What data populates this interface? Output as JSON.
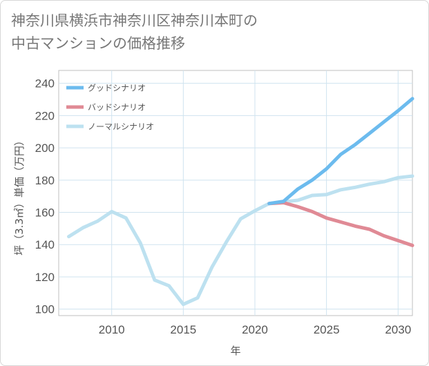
{
  "title_line1": "神奈川県横浜市神奈川区神奈川本町の",
  "title_line2": "中古マンションの価格推移",
  "chart_data": {
    "type": "line",
    "xlabel": "年",
    "ylabel": "坪（3.3㎡）単価（万円）",
    "xlim": [
      2006.3,
      2031
    ],
    "ylim": [
      96,
      248
    ],
    "xticks": [
      2010,
      2015,
      2020,
      2025,
      2030
    ],
    "yticks": [
      100,
      120,
      140,
      160,
      180,
      200,
      220,
      240
    ],
    "grid": true,
    "legend_position": "top-left",
    "series": [
      {
        "name": "グッドシナリオ",
        "color": "#6cbbee",
        "x": [
          2021,
          2022,
          2023,
          2024,
          2025,
          2026,
          2027,
          2028,
          2029,
          2030,
          2031
        ],
        "y": [
          165.5,
          166.8,
          174.5,
          180.0,
          187.0,
          196.0,
          202.0,
          209.0,
          216.0,
          223.0,
          230.5
        ]
      },
      {
        "name": "バッドシナリオ",
        "color": "#e08a95",
        "x": [
          2021,
          2022,
          2023,
          2024,
          2025,
          2026,
          2027,
          2028,
          2029,
          2030,
          2031
        ],
        "y": [
          165.5,
          166.0,
          163.5,
          160.5,
          156.5,
          154.0,
          151.5,
          149.5,
          145.5,
          142.5,
          139.5
        ]
      },
      {
        "name": "ノーマルシナリオ",
        "color": "#bde1f0",
        "x": [
          2007,
          2008,
          2009,
          2010,
          2011,
          2012,
          2013,
          2014,
          2015,
          2016,
          2017,
          2018,
          2019,
          2020,
          2021,
          2022,
          2023,
          2024,
          2025,
          2026,
          2027,
          2028,
          2029,
          2030,
          2031
        ],
        "y": [
          145.0,
          150.5,
          154.5,
          160.5,
          156.5,
          141.0,
          118.0,
          114.5,
          103.0,
          107.0,
          126.0,
          141.5,
          156.0,
          161.0,
          165.5,
          166.5,
          167.5,
          170.5,
          171.0,
          174.0,
          175.5,
          177.5,
          179.0,
          181.5,
          182.5
        ]
      }
    ]
  }
}
